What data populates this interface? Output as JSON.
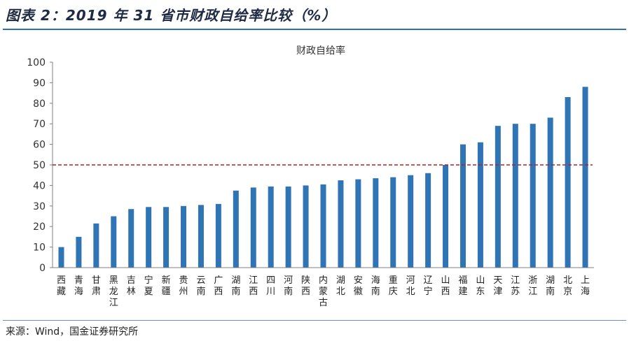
{
  "header": {
    "title": "图表 2：2019 年 31 省市财政自给率比较（%）"
  },
  "footer": {
    "source": "来源：Wind，国金证券研究所"
  },
  "colors": {
    "bar": "#2f74b5",
    "reference_line": "#b22222",
    "axis": "#7f7f7f",
    "rule": "#2f6fb6"
  },
  "chart_data": {
    "type": "bar",
    "title": "财政自给率",
    "xlabel": "",
    "ylabel": "",
    "ylim": [
      0,
      100
    ],
    "yticks": [
      0,
      10,
      20,
      30,
      40,
      50,
      60,
      70,
      80,
      90,
      100
    ],
    "grid": false,
    "legend": "none",
    "reference_line": {
      "y": 50,
      "style": "dashed"
    },
    "categories": [
      [
        "西",
        "藏"
      ],
      [
        "青",
        "海"
      ],
      [
        "甘",
        "肃"
      ],
      [
        "黑",
        "龙",
        "江"
      ],
      [
        "吉",
        "林"
      ],
      [
        "宁",
        "夏"
      ],
      [
        "新",
        "疆"
      ],
      [
        "贵",
        "州"
      ],
      [
        "云",
        "南"
      ],
      [
        "广",
        "西"
      ],
      [
        "湖",
        "南"
      ],
      [
        "江",
        "西"
      ],
      [
        "四",
        "川"
      ],
      [
        "河",
        "南"
      ],
      [
        "陕",
        "西"
      ],
      [
        "内",
        "蒙",
        "古"
      ],
      [
        "湖",
        "北"
      ],
      [
        "安",
        "徽"
      ],
      [
        "海",
        "南"
      ],
      [
        "重",
        "庆"
      ],
      [
        "河",
        "北"
      ],
      [
        "辽",
        "宁"
      ],
      [
        "山",
        "西"
      ],
      [
        "福",
        "建"
      ],
      [
        "山",
        "东"
      ],
      [
        "天",
        "津"
      ],
      [
        "江",
        "苏"
      ],
      [
        "浙",
        "江"
      ],
      [
        "湖",
        "南"
      ],
      [
        "北",
        "京"
      ],
      [
        "上",
        "海"
      ]
    ],
    "values": [
      10,
      15,
      21.5,
      25,
      28.5,
      29.5,
      29.5,
      30,
      30.5,
      31,
      37.5,
      39,
      39.5,
      39.5,
      40,
      40.5,
      42.5,
      43,
      43.5,
      44,
      45,
      46,
      50,
      60,
      61,
      69,
      70,
      70,
      73,
      83,
      88
    ]
  }
}
